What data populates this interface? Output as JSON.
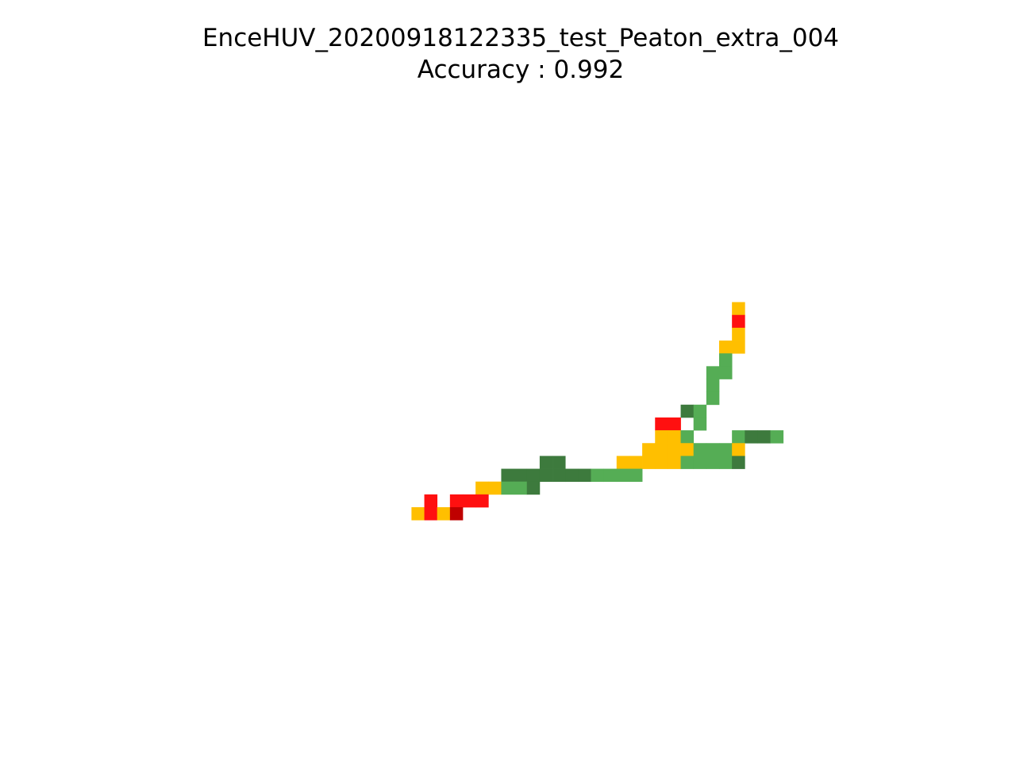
{
  "chart_data": {
    "type": "heatmap",
    "title": "EnceHUV_20200918122335_test_Peaton_extra_004",
    "subtitle": "Accuracy : 0.992",
    "axes_visible": false,
    "grid": false,
    "color_key": {
      "dark_green": "#3d7a3d",
      "light_green": "#55ad55",
      "amber": "#ffbf00",
      "red": "#ff1010",
      "dark_red": "#bf0000"
    },
    "cells": [
      {
        "col": 25,
        "row": 0,
        "class": "amber"
      },
      {
        "col": 25,
        "row": 1,
        "class": "red"
      },
      {
        "col": 25,
        "row": 2,
        "class": "amber"
      },
      {
        "col": 24,
        "row": 3,
        "class": "amber"
      },
      {
        "col": 25,
        "row": 3,
        "class": "amber"
      },
      {
        "col": 24,
        "row": 4,
        "class": "light_green"
      },
      {
        "col": 23,
        "row": 5,
        "class": "light_green"
      },
      {
        "col": 24,
        "row": 5,
        "class": "light_green"
      },
      {
        "col": 23,
        "row": 6,
        "class": "light_green"
      },
      {
        "col": 23,
        "row": 7,
        "class": "light_green"
      },
      {
        "col": 21,
        "row": 8,
        "class": "dark_green"
      },
      {
        "col": 22,
        "row": 8,
        "class": "light_green"
      },
      {
        "col": 19,
        "row": 9,
        "class": "red"
      },
      {
        "col": 20,
        "row": 9,
        "class": "red"
      },
      {
        "col": 22,
        "row": 9,
        "class": "light_green"
      },
      {
        "col": 19,
        "row": 10,
        "class": "amber"
      },
      {
        "col": 20,
        "row": 10,
        "class": "amber"
      },
      {
        "col": 21,
        "row": 10,
        "class": "light_green"
      },
      {
        "col": 25,
        "row": 10,
        "class": "light_green"
      },
      {
        "col": 26,
        "row": 10,
        "class": "dark_green"
      },
      {
        "col": 27,
        "row": 10,
        "class": "dark_green"
      },
      {
        "col": 28,
        "row": 10,
        "class": "light_green"
      },
      {
        "col": 18,
        "row": 11,
        "class": "amber"
      },
      {
        "col": 19,
        "row": 11,
        "class": "amber"
      },
      {
        "col": 20,
        "row": 11,
        "class": "amber"
      },
      {
        "col": 21,
        "row": 11,
        "class": "amber"
      },
      {
        "col": 22,
        "row": 11,
        "class": "light_green"
      },
      {
        "col": 23,
        "row": 11,
        "class": "light_green"
      },
      {
        "col": 24,
        "row": 11,
        "class": "light_green"
      },
      {
        "col": 25,
        "row": 11,
        "class": "amber"
      },
      {
        "col": 10,
        "row": 12,
        "class": "dark_green"
      },
      {
        "col": 11,
        "row": 12,
        "class": "dark_green"
      },
      {
        "col": 16,
        "row": 12,
        "class": "amber"
      },
      {
        "col": 17,
        "row": 12,
        "class": "amber"
      },
      {
        "col": 18,
        "row": 12,
        "class": "amber"
      },
      {
        "col": 19,
        "row": 12,
        "class": "amber"
      },
      {
        "col": 20,
        "row": 12,
        "class": "amber"
      },
      {
        "col": 21,
        "row": 12,
        "class": "light_green"
      },
      {
        "col": 22,
        "row": 12,
        "class": "light_green"
      },
      {
        "col": 23,
        "row": 12,
        "class": "light_green"
      },
      {
        "col": 24,
        "row": 12,
        "class": "light_green"
      },
      {
        "col": 25,
        "row": 12,
        "class": "dark_green"
      },
      {
        "col": 7,
        "row": 13,
        "class": "dark_green"
      },
      {
        "col": 8,
        "row": 13,
        "class": "dark_green"
      },
      {
        "col": 9,
        "row": 13,
        "class": "dark_green"
      },
      {
        "col": 10,
        "row": 13,
        "class": "dark_green"
      },
      {
        "col": 11,
        "row": 13,
        "class": "dark_green"
      },
      {
        "col": 12,
        "row": 13,
        "class": "dark_green"
      },
      {
        "col": 13,
        "row": 13,
        "class": "dark_green"
      },
      {
        "col": 14,
        "row": 13,
        "class": "light_green"
      },
      {
        "col": 15,
        "row": 13,
        "class": "light_green"
      },
      {
        "col": 16,
        "row": 13,
        "class": "light_green"
      },
      {
        "col": 17,
        "row": 13,
        "class": "light_green"
      },
      {
        "col": 5,
        "row": 14,
        "class": "amber"
      },
      {
        "col": 6,
        "row": 14,
        "class": "amber"
      },
      {
        "col": 7,
        "row": 14,
        "class": "light_green"
      },
      {
        "col": 8,
        "row": 14,
        "class": "light_green"
      },
      {
        "col": 9,
        "row": 14,
        "class": "dark_green"
      },
      {
        "col": 1,
        "row": 15,
        "class": "red"
      },
      {
        "col": 3,
        "row": 15,
        "class": "red"
      },
      {
        "col": 4,
        "row": 15,
        "class": "red"
      },
      {
        "col": 5,
        "row": 15,
        "class": "red"
      },
      {
        "col": 0,
        "row": 16,
        "class": "amber"
      },
      {
        "col": 1,
        "row": 16,
        "class": "red"
      },
      {
        "col": 2,
        "row": 16,
        "class": "amber"
      },
      {
        "col": 3,
        "row": 16,
        "class": "dark_red"
      }
    ]
  }
}
